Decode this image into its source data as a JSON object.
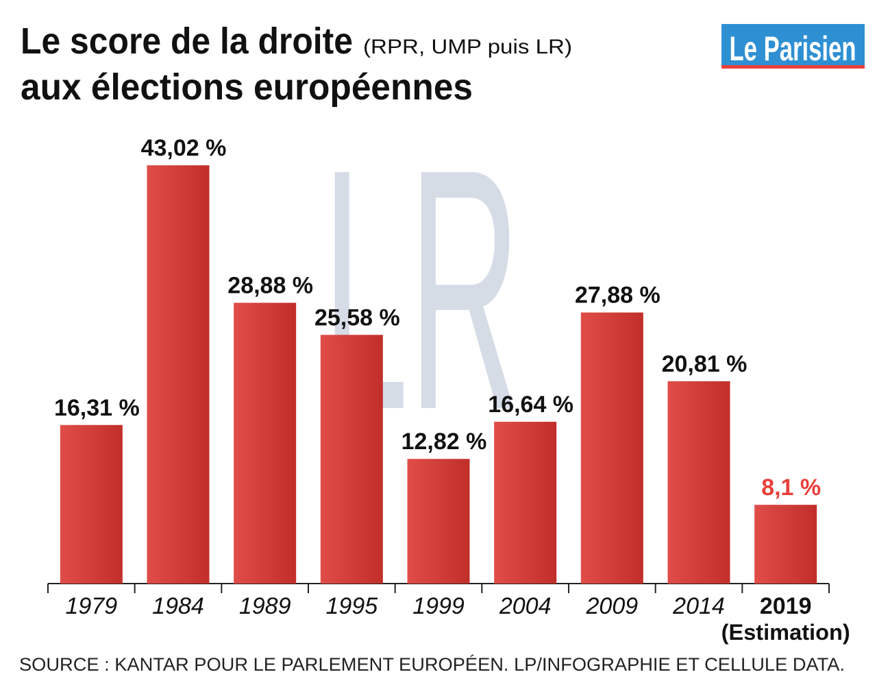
{
  "chart_data": {
    "type": "bar",
    "title": "Le score de la droite",
    "title_note": "(RPR, UMP puis LR)",
    "title_line2": "aux élections européennes",
    "logo": "Le Parisien",
    "watermark": "LR",
    "categories": [
      "1979",
      "1984",
      "1989",
      "1995",
      "1999",
      "2004",
      "2009",
      "2014",
      "2019"
    ],
    "category_note": "(Estimation)",
    "values": [
      16.31,
      43.02,
      28.88,
      25.58,
      12.82,
      16.64,
      27.88,
      20.81,
      8.1
    ],
    "value_labels": [
      "16,31 %",
      "43,02 %",
      "28,88 %",
      "25,58 %",
      "12,82 %",
      "16,64 %",
      "27,88 %",
      "20,81 %",
      "8,1 %"
    ],
    "color": "#dc3530",
    "highlight_color": "#e8403b",
    "ylim": [
      0,
      45
    ],
    "source": "SOURCE : KANTAR POUR LE PARLEMENT EUROPÉEN.  LP/INFOGRAPHIE ET CELLULE DATA."
  }
}
